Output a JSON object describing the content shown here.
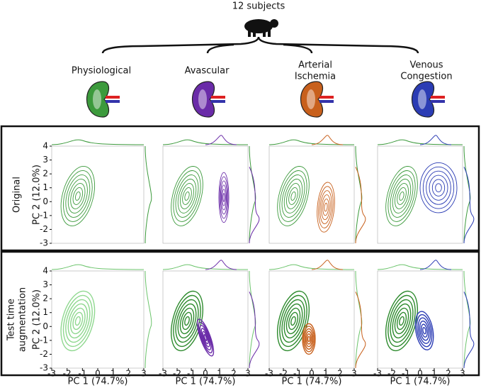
{
  "header": {
    "title": "12 subjects"
  },
  "conditions": [
    {
      "label": [
        "Physiological"
      ],
      "color": "#3c9a3c"
    },
    {
      "label": [
        "Avascular"
      ],
      "color": "#6a2ba8"
    },
    {
      "label": [
        "Arterial",
        "Ischemia"
      ],
      "color": "#c8601c"
    },
    {
      "label": [
        "Venous",
        "Congestion"
      ],
      "color": "#2b3cb4"
    }
  ],
  "rows": [
    {
      "label": [
        "Original"
      ]
    },
    {
      "label": [
        "Test time",
        "augmentation"
      ]
    }
  ],
  "axes": {
    "xlabel": "PC 1 (74.7%)",
    "ylabel": "PC 2 (12.0%)",
    "xlim": [
      -3,
      3
    ],
    "ylim": [
      -3,
      4
    ],
    "xticks": [
      -3,
      -2,
      -1,
      0,
      1,
      2,
      3
    ],
    "yticks": [
      -3,
      -2,
      -1,
      0,
      1,
      2,
      3,
      4
    ]
  }
}
